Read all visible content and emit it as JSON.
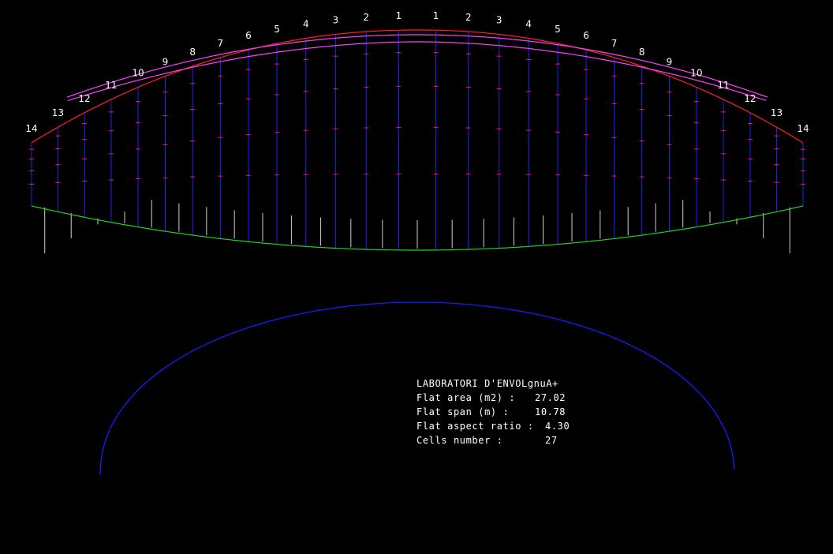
{
  "rib_numbers": [
    "14",
    "13",
    "12",
    "11",
    "10",
    "9",
    "8",
    "7",
    "6",
    "5",
    "4",
    "3",
    "2",
    "1",
    "1",
    "2",
    "3",
    "4",
    "5",
    "6",
    "7",
    "8",
    "9",
    "10",
    "11",
    "12",
    "13",
    "14"
  ],
  "info": {
    "title": "LABORATORI D'ENVOLgnuA+",
    "rows": [
      {
        "label": "Flat area (m2) :",
        "value": "27.02"
      },
      {
        "label": "Flat span (m) :",
        "value": "10.78"
      },
      {
        "label": "Flat aspect ratio :",
        "value": "4.30"
      },
      {
        "label": "Cells number :",
        "value": "27"
      }
    ]
  },
  "colors": {
    "background": "#000000",
    "leading_edge": "#ff2020",
    "profile_lines": "#ff40ff",
    "ribs": "#2020ff",
    "trailing_edge": "#20d020",
    "markers": "#ff2020",
    "tabs": "#d0d0d0",
    "arc_view": "#1a1aff"
  }
}
